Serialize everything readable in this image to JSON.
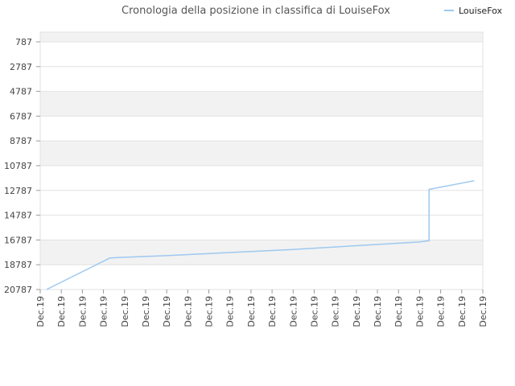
{
  "chart_data": {
    "type": "line",
    "title": "Cronologia della posizione in classifica di LouiseFox",
    "xlabel": "",
    "ylabel": "",
    "legend": {
      "position": "top-right"
    },
    "grid": true,
    "y_inverted": true,
    "ylim": [
      787,
      20787
    ],
    "y_ticks": [
      787,
      2787,
      4787,
      6787,
      8787,
      10787,
      12787,
      14787,
      16787,
      18787,
      20787
    ],
    "x_tick_labels": [
      "Dec.19",
      "Dec.19",
      "Dec.19",
      "Dec.19",
      "Dec.19",
      "Dec.19",
      "Dec.19",
      "Dec.19",
      "Dec.19",
      "Dec.19",
      "Dec.19",
      "Dec.19",
      "Dec.19",
      "Dec.19",
      "Dec.19",
      "Dec.19",
      "Dec.19",
      "Dec.19",
      "Dec.19",
      "Dec.19",
      "Dec.19",
      "Dec.19"
    ],
    "series": [
      {
        "name": "LouiseFox",
        "color": "#9ec8f0",
        "points": [
          {
            "x": 0.3,
            "y": 20787
          },
          {
            "x": 3.3,
            "y": 18250
          },
          {
            "x": 3.7,
            "y": 18200
          },
          {
            "x": 6.0,
            "y": 18050
          },
          {
            "x": 9.0,
            "y": 17800
          },
          {
            "x": 12.0,
            "y": 17550
          },
          {
            "x": 15.0,
            "y": 17250
          },
          {
            "x": 18.0,
            "y": 16950
          },
          {
            "x": 18.45,
            "y": 16850
          },
          {
            "x": 18.45,
            "y": 12700
          },
          {
            "x": 20.6,
            "y": 12000
          }
        ]
      }
    ]
  }
}
